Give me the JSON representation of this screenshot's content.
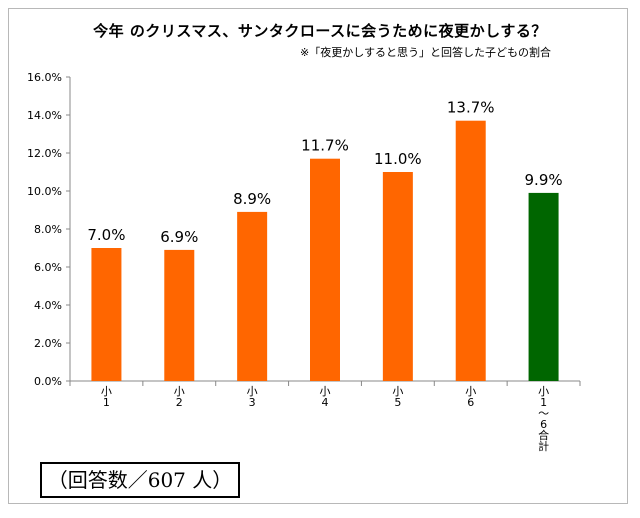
{
  "chart_data": {
    "type": "bar",
    "title": "今年 のクリスマス、サンタクロースに会うために夜更かしする？",
    "subtitle": "※「夜更かしすると思う」と回答した子どもの割合",
    "categories": [
      "小1",
      "小2",
      "小3",
      "小4",
      "小5",
      "小6",
      "小1～6合計"
    ],
    "values": [
      7.0,
      6.9,
      8.9,
      11.7,
      11.0,
      13.7,
      9.9
    ],
    "value_labels": [
      "7.0%",
      "6.9%",
      "8.9%",
      "11.7%",
      "11.0%",
      "13.7%",
      "9.9%"
    ],
    "bar_colors": [
      "#ff6600",
      "#ff6600",
      "#ff6600",
      "#ff6600",
      "#ff6600",
      "#ff6600",
      "#006600"
    ],
    "ylim": [
      0,
      16
    ],
    "yticks": [
      "0.0%",
      "2.0%",
      "4.0%",
      "6.0%",
      "8.0%",
      "10.0%",
      "12.0%",
      "14.0%",
      "16.0%"
    ],
    "xlabel": "",
    "ylabel": "",
    "grid": false,
    "legend": "none"
  },
  "note": "（回答数／607 人）"
}
